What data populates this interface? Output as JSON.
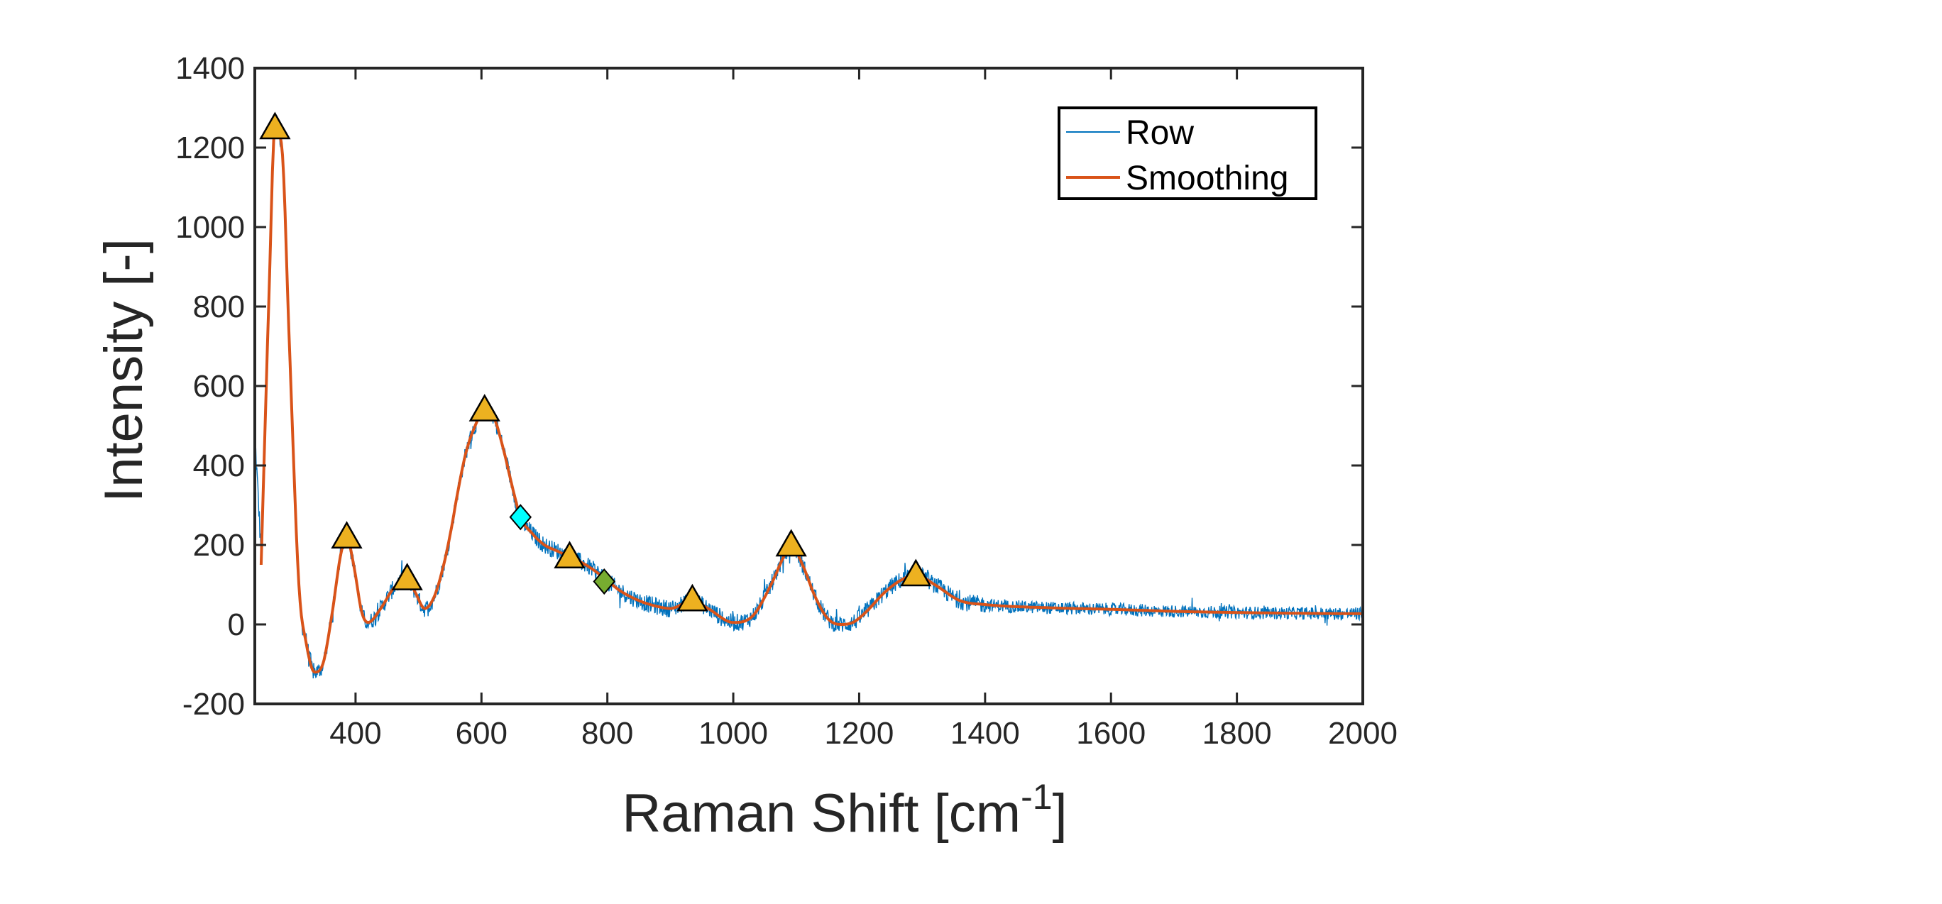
{
  "chart_data": {
    "type": "line",
    "xlabel": "Raman Shift [cm",
    "xlabel_superscript": "-1",
    "xlabel_suffix": "]",
    "ylabel": "Intensity [-]",
    "xlim": [
      240,
      2000
    ],
    "ylim": [
      -200,
      1400
    ],
    "x_ticks": [
      400,
      600,
      800,
      1000,
      1200,
      1400,
      1600,
      1800,
      2000
    ],
    "y_ticks": [
      -200,
      0,
      200,
      400,
      600,
      800,
      1000,
      1200,
      1400
    ],
    "grid": false,
    "legend_placement": "top-right",
    "colors": {
      "raw": "#0072BD",
      "smoothing": "#D95319",
      "peak": "#EDB120",
      "cyan_marker": "#00FFFF",
      "green_marker": "#77AC30"
    },
    "smoothing_knots": {
      "x": [
        250,
        262,
        272,
        283,
        295,
        310,
        322,
        335,
        348,
        362,
        377,
        386,
        397,
        410,
        420,
        440,
        460,
        482,
        495,
        510,
        525,
        540,
        552,
        562,
        575,
        590,
        605,
        620,
        635,
        650,
        662,
        680,
        700,
        720,
        740,
        760,
        780,
        800,
        820,
        850,
        880,
        900,
        935,
        960,
        1000,
        1030,
        1060,
        1080,
        1092,
        1110,
        1130,
        1150,
        1170,
        1190,
        1210,
        1240,
        1265,
        1290,
        1320,
        1360,
        1400,
        1500,
        1600,
        1700,
        1800,
        1900,
        2000
      ],
      "y": [
        150,
        800,
        1250,
        1200,
        700,
        100,
        -50,
        -120,
        -100,
        20,
        180,
        220,
        150,
        30,
        5,
        40,
        90,
        115,
        80,
        40,
        70,
        150,
        240,
        330,
        430,
        500,
        540,
        520,
        440,
        340,
        270,
        230,
        200,
        185,
        170,
        155,
        135,
        110,
        85,
        60,
        45,
        40,
        60,
        40,
        5,
        20,
        100,
        170,
        200,
        150,
        70,
        15,
        0,
        5,
        30,
        80,
        110,
        125,
        100,
        60,
        50,
        42,
        38,
        33,
        30,
        28,
        27
      ]
    },
    "series": [
      {
        "name": "Row",
        "style": "raw-noisy-spectrum"
      },
      {
        "name": "Smoothing",
        "style": "smoothed-spectrum"
      }
    ],
    "peak_markers": [
      {
        "x": 272,
        "y": 1250,
        "shape": "triangle"
      },
      {
        "x": 386,
        "y": 220,
        "shape": "triangle"
      },
      {
        "x": 482,
        "y": 115,
        "shape": "triangle"
      },
      {
        "x": 605,
        "y": 540,
        "shape": "triangle"
      },
      {
        "x": 740,
        "y": 170,
        "shape": "triangle"
      },
      {
        "x": 935,
        "y": 62,
        "shape": "triangle"
      },
      {
        "x": 1092,
        "y": 200,
        "shape": "triangle"
      },
      {
        "x": 1290,
        "y": 125,
        "shape": "triangle"
      }
    ],
    "special_markers": [
      {
        "x": 662,
        "y": 270,
        "shape": "diamond",
        "color": "#00FFFF"
      },
      {
        "x": 795,
        "y": 108,
        "shape": "diamond",
        "color": "#77AC30"
      }
    ]
  }
}
